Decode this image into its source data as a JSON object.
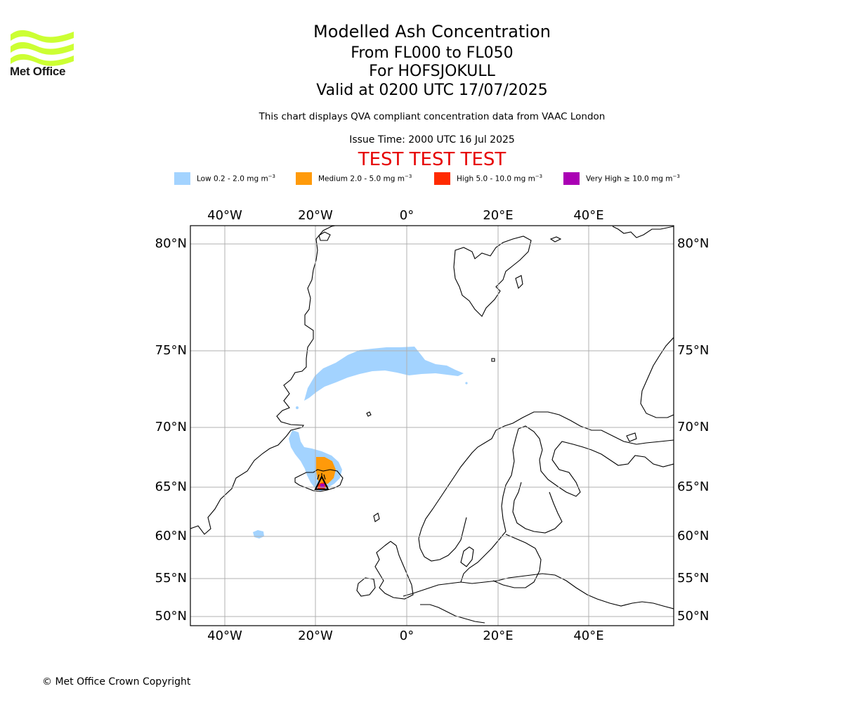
{
  "logo": {
    "text": "Met Office",
    "color": "#ccff33"
  },
  "header": {
    "title": "Modelled Ash Concentration",
    "levels": "From FL000 to FL050",
    "volcano": "For HOFSJOKULL",
    "valid": "Valid at 0200 UTC 17/07/2025",
    "description": "This chart displays QVA compliant concentration data from VAAC London",
    "issue_time": "Issue Time: 2000 UTC 16 Jul 2025",
    "test_banner": "TEST TEST TEST",
    "test_color": "#e60000"
  },
  "legend": [
    {
      "label": "Low 0.2 - 2.0 mg m",
      "unit_exp": "−3",
      "color": "#a3d3ff"
    },
    {
      "label": "Medium 2.0 - 5.0 mg m",
      "unit_exp": "−3",
      "color": "#ff9a0a"
    },
    {
      "label": "High 5.0 - 10.0 mg m",
      "unit_exp": "−3",
      "color": "#ff2a00"
    },
    {
      "label": "Very High  ≥  10.0 mg m",
      "unit_exp": "−3",
      "color": "#aa00b4"
    }
  ],
  "map": {
    "lon_ticks": [
      "40°W",
      "20°W",
      "0°",
      "20°E",
      "40°E"
    ],
    "lat_ticks": [
      "80°N",
      "75°N",
      "70°N",
      "65°N",
      "60°N",
      "55°N",
      "50°N"
    ],
    "grid": true,
    "volcano_marker": "triangle-icon"
  },
  "footer": {
    "copyright": "© Met Office Crown Copyright"
  }
}
